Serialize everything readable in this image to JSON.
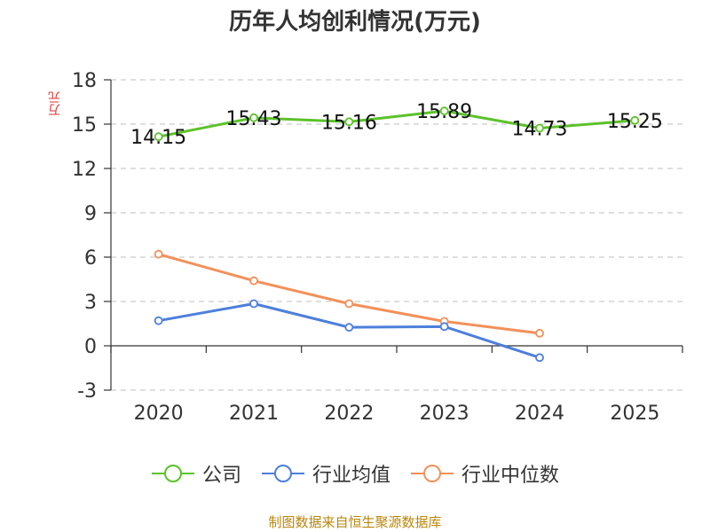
{
  "chart_data": {
    "type": "line",
    "title": "历年人均创利情况(万元)",
    "ylabel": "万元",
    "categories": [
      "2020",
      "2021",
      "2022",
      "2023",
      "2024",
      "2025"
    ],
    "ylim": [
      -3,
      18
    ],
    "yticks": [
      -3,
      0,
      3,
      6,
      9,
      12,
      15,
      18
    ],
    "grid": true,
    "legend_position": "bottom",
    "series": [
      {
        "name": "公司",
        "color": "#5cc22a",
        "values": [
          14.15,
          15.43,
          15.16,
          15.89,
          14.73,
          15.25
        ],
        "labels": [
          "14.15",
          "15.43",
          "15.16",
          "15.89",
          "14.73",
          "15.25"
        ]
      },
      {
        "name": "行业均值",
        "color": "#4d7fdb",
        "values": [
          1.7,
          2.85,
          1.25,
          1.3,
          -0.8,
          null
        ]
      },
      {
        "name": "行业中位数",
        "color": "#f39059",
        "values": [
          6.2,
          4.4,
          2.85,
          1.65,
          0.85,
          null
        ]
      }
    ]
  },
  "source": "制图数据来自恒生聚源数据库"
}
